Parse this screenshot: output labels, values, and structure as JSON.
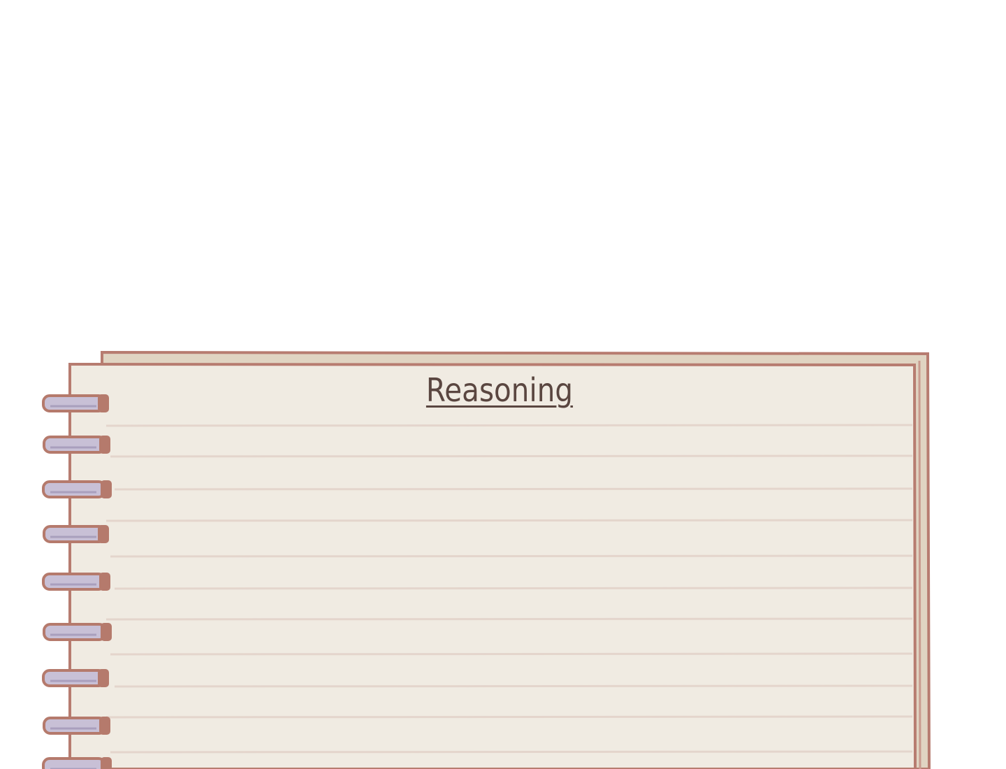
{
  "notebook": {
    "title": "Reasoning",
    "colors": {
      "paper": "#f0ebe2",
      "back_page": "#e0d4c2",
      "border": "#b77c70",
      "ruled_line": "#e4d5cc",
      "ring": "#c8c0d6",
      "ring_outline": "#b57a6c",
      "ink": "#5a4640"
    },
    "ring_count": 9,
    "ruled_line_count": 11
  }
}
